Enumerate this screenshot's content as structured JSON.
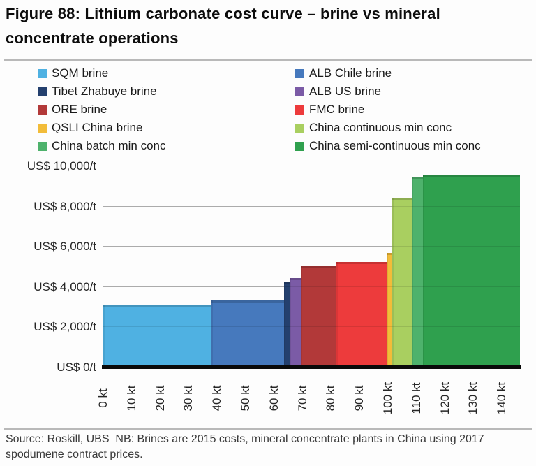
{
  "figure": {
    "title": "Figure 88: Lithium carbonate cost curve – brine vs mineral concentrate operations",
    "source_note": "Source: Roskill, UBS  NB: Brines are 2015 costs, mineral concentrate plants in China using 2017 spodumene contract prices."
  },
  "chart_data": {
    "type": "bar",
    "subtype": "cost-curve-variable-width-columns",
    "title": "Figure 88: Lithium carbonate cost curve – brine vs mineral concentrate operations",
    "xlabel": "",
    "ylabel": "",
    "grid": true,
    "legend_position": "top",
    "xlim_kt": [
      0,
      150
    ],
    "ylim": [
      0,
      10000
    ],
    "y_ticks": [
      {
        "value": 0,
        "label": "US$ 0/t"
      },
      {
        "value": 2000,
        "label": "US$ 2,000/t"
      },
      {
        "value": 4000,
        "label": "US$ 4,000/t"
      },
      {
        "value": 6000,
        "label": "US$ 6,000/t"
      },
      {
        "value": 8000,
        "label": "US$ 8,000/t"
      },
      {
        "value": 10000,
        "label": "US$ 10,000/t"
      }
    ],
    "x_ticks": [
      {
        "value": 0,
        "label": "0 kt"
      },
      {
        "value": 10,
        "label": "10 kt"
      },
      {
        "value": 20,
        "label": "20 kt"
      },
      {
        "value": 30,
        "label": "30 kt"
      },
      {
        "value": 40,
        "label": "40 kt"
      },
      {
        "value": 50,
        "label": "50 kt"
      },
      {
        "value": 60,
        "label": "60 kt"
      },
      {
        "value": 70,
        "label": "70 kt"
      },
      {
        "value": 80,
        "label": "80 kt"
      },
      {
        "value": 90,
        "label": "90 kt"
      },
      {
        "value": 100,
        "label": "100 kt"
      },
      {
        "value": 110,
        "label": "110 kt"
      },
      {
        "value": 120,
        "label": "120 kt"
      },
      {
        "value": 130,
        "label": "130 kt"
      },
      {
        "value": 140,
        "label": "140 kt"
      }
    ],
    "series": [
      {
        "name": "SQM brine",
        "start_kt": 0,
        "capacity_kt": 39,
        "cost_usd_per_t": 3050,
        "color": "#4FB1E2"
      },
      {
        "name": "ALB Chile brine",
        "start_kt": 39,
        "capacity_kt": 26,
        "cost_usd_per_t": 3300,
        "color": "#4679BD"
      },
      {
        "name": "Tibet Zhabuye brine",
        "start_kt": 65,
        "capacity_kt": 2,
        "cost_usd_per_t": 4200,
        "color": "#24406E"
      },
      {
        "name": "ALB US brine",
        "start_kt": 67,
        "capacity_kt": 4,
        "cost_usd_per_t": 4400,
        "color": "#7B5BA6"
      },
      {
        "name": "ORE brine",
        "start_kt": 71,
        "capacity_kt": 13,
        "cost_usd_per_t": 5000,
        "color": "#B23939"
      },
      {
        "name": "FMC brine",
        "start_kt": 84,
        "capacity_kt": 18,
        "cost_usd_per_t": 5200,
        "color": "#ED3B3C"
      },
      {
        "name": "QSLI China brine",
        "start_kt": 102,
        "capacity_kt": 2,
        "cost_usd_per_t": 5650,
        "color": "#F2BC39"
      },
      {
        "name": "China continuous min conc",
        "start_kt": 104,
        "capacity_kt": 7,
        "cost_usd_per_t": 8400,
        "color": "#A9CF60"
      },
      {
        "name": "China batch min conc",
        "start_kt": 111,
        "capacity_kt": 4,
        "cost_usd_per_t": 9450,
        "color": "#4EB26C"
      },
      {
        "name": "China semi-continuous min conc",
        "start_kt": 115,
        "capacity_kt": 35,
        "cost_usd_per_t": 9550,
        "color": "#2FA04E"
      }
    ]
  }
}
